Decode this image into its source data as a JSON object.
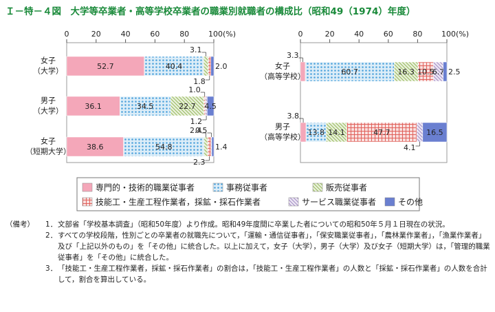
{
  "title": "Ｉ－特－４図　大学等卒業者・高等学校卒業者の職業別就職者の構成比（昭和49（1974）年度）",
  "chart_data": [
    {
      "type": "bar",
      "orientation": "horizontal",
      "stacked": true,
      "categories": [
        "女子\n（大学）",
        "男子\n（大学）",
        "女子\n（短期大学）"
      ],
      "xlim": [
        0,
        100
      ],
      "xticks": [
        0,
        20,
        40,
        60,
        80,
        {
          "value": 100,
          "label": "100(%)"
        }
      ],
      "series": [
        {
          "name": "専門的・技術的職業従事者",
          "color": "#f4a7b9",
          "pattern": "solid",
          "values": [
            52.7,
            36.1,
            38.6
          ],
          "value_labels": [
            "52.7",
            "36.1",
            "38.6"
          ]
        },
        {
          "name": "事務従事者",
          "color": "#4fa3dc",
          "pattern": "dots",
          "values": [
            40.4,
            34.5,
            54.8
          ],
          "value_labels": [
            "40.4",
            "34.5",
            "54.8"
          ]
        },
        {
          "name": "販売従事者",
          "color": "#8db24a",
          "pattern": "hatch",
          "values": [
            3.1,
            22.7,
            2.4
          ],
          "value_labels": [
            "3.1",
            "22.7",
            "2.4"
          ]
        },
        {
          "name": "技能工・生産工程作業者，採鉱・採石作業者",
          "color": "#e0605a",
          "pattern": "grid",
          "values": [
            1.8,
            1.0,
            2.3
          ],
          "value_labels": [
            "1.8",
            "1.0",
            "2.3"
          ]
        },
        {
          "name": "サービス職業従事者",
          "color": "#9a80c0",
          "pattern": "hatch",
          "values": [
            null,
            1.2,
            0.5
          ],
          "value_labels": [
            null,
            "1.2",
            "0.5"
          ]
        },
        {
          "name": "その他",
          "color": "#6a7fd0",
          "pattern": "solid",
          "values": [
            2.0,
            4.5,
            1.4
          ],
          "value_labels": [
            "2.0",
            "4.5",
            "1.4"
          ]
        }
      ]
    },
    {
      "type": "bar",
      "orientation": "horizontal",
      "stacked": true,
      "categories": [
        "女子\n（高等学校）",
        "男子\n（高等学校）"
      ],
      "xlim": [
        0,
        100
      ],
      "xticks": [
        0,
        20,
        40,
        60,
        80,
        {
          "value": 100,
          "label": "100(%)"
        }
      ],
      "series": [
        {
          "color": "#f4a7b9",
          "pattern": "solid",
          "values": [
            3.3,
            3.8
          ],
          "value_labels": [
            "3.3",
            "3.8"
          ]
        },
        {
          "color": "#4fa3dc",
          "pattern": "dots",
          "values": [
            60.7,
            13.8
          ],
          "value_labels": [
            "60.7",
            "13.8"
          ]
        },
        {
          "color": "#8db24a",
          "pattern": "hatch",
          "values": [
            16.3,
            14.1
          ],
          "value_labels": [
            "16.3",
            "14.1"
          ]
        },
        {
          "color": "#e0605a",
          "pattern": "grid",
          "values": [
            10.5,
            47.7
          ],
          "value_labels": [
            "10.5",
            "47.7"
          ]
        },
        {
          "color": "#9a80c0",
          "pattern": "hatch",
          "values": [
            6.7,
            4.1
          ],
          "value_labels": [
            "6.7",
            "4.1"
          ]
        },
        {
          "color": "#6a7fd0",
          "pattern": "solid",
          "values": [
            2.5,
            16.5
          ],
          "value_labels": [
            "2.5",
            "16.5"
          ]
        }
      ]
    }
  ],
  "notes": {
    "label": "（備考）",
    "items": [
      {
        "number": "1．",
        "text": "文部省「学校基本調査」（昭和50年度）より作成。昭和49年度間に卒業した者についての昭和50年５月１日現在の状況。"
      },
      {
        "number": "2．",
        "text": "すべての学校段階，性別ごとの卒業者の就職先について，「運輸・通信従事者」，「保安職業従事者」，「農林業作業者」，「漁業作業者」及び「上記以外のもの」を「その他」に統合した。以上に加えて，女子（大学），男子（大学）及び女子（短期大学）は，「管理的職業従事者」を「その他」に統合した。"
      },
      {
        "number": "3．",
        "text": "「技能工・生産工程作業者，採鉱・採石作業者」の割合は，「技能工・生産工程作業者」の人数と「採鉱・採石作業者」の人数を合計して，割合を算出している。"
      }
    ]
  }
}
